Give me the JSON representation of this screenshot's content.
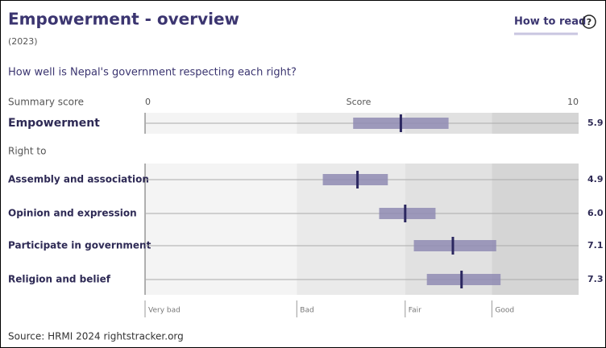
{
  "title": "Empowerment - overview",
  "subtitle": "(2023)",
  "how_to_read": "How to read",
  "help_icon": "?",
  "question": "How well is Nepal's government respecting each right?",
  "source": "Source: HRMI 2024 rightstracker.org",
  "chart_data": {
    "type": "range",
    "summary_label": "Summary score",
    "axis_label": "Score",
    "xlim": [
      0,
      10
    ],
    "xticks": [
      0,
      10
    ],
    "summary": {
      "categories": [
        "Empowerment"
      ],
      "values": [
        5.9
      ],
      "value_labels": [
        "5.9"
      ],
      "low": [
        4.8
      ],
      "high": [
        7.0
      ]
    },
    "section_label": "Right to",
    "categories": [
      "Assembly and association",
      "Opinion and expression",
      "Participate in government",
      "Religion and belief"
    ],
    "values": [
      4.9,
      6.0,
      7.1,
      7.3
    ],
    "value_labels": [
      "4.9",
      "6.0",
      "7.1",
      "7.3"
    ],
    "low": [
      4.1,
      5.4,
      6.2,
      6.5
    ],
    "high": [
      5.6,
      6.7,
      8.1,
      8.2
    ],
    "bar_color": "#8f8bb3",
    "marker_color": "#2b2760",
    "bands": [
      {
        "name": "Very bad",
        "from": 0,
        "to": 3.5,
        "color": "#f4f4f4"
      },
      {
        "name": "Bad",
        "from": 3.5,
        "to": 6,
        "color": "#eaeaea"
      },
      {
        "name": "Fair",
        "from": 6,
        "to": 8,
        "color": "#e1e1e1"
      },
      {
        "name": "Good",
        "from": 8,
        "to": 10,
        "color": "#d5d5d5"
      }
    ]
  }
}
